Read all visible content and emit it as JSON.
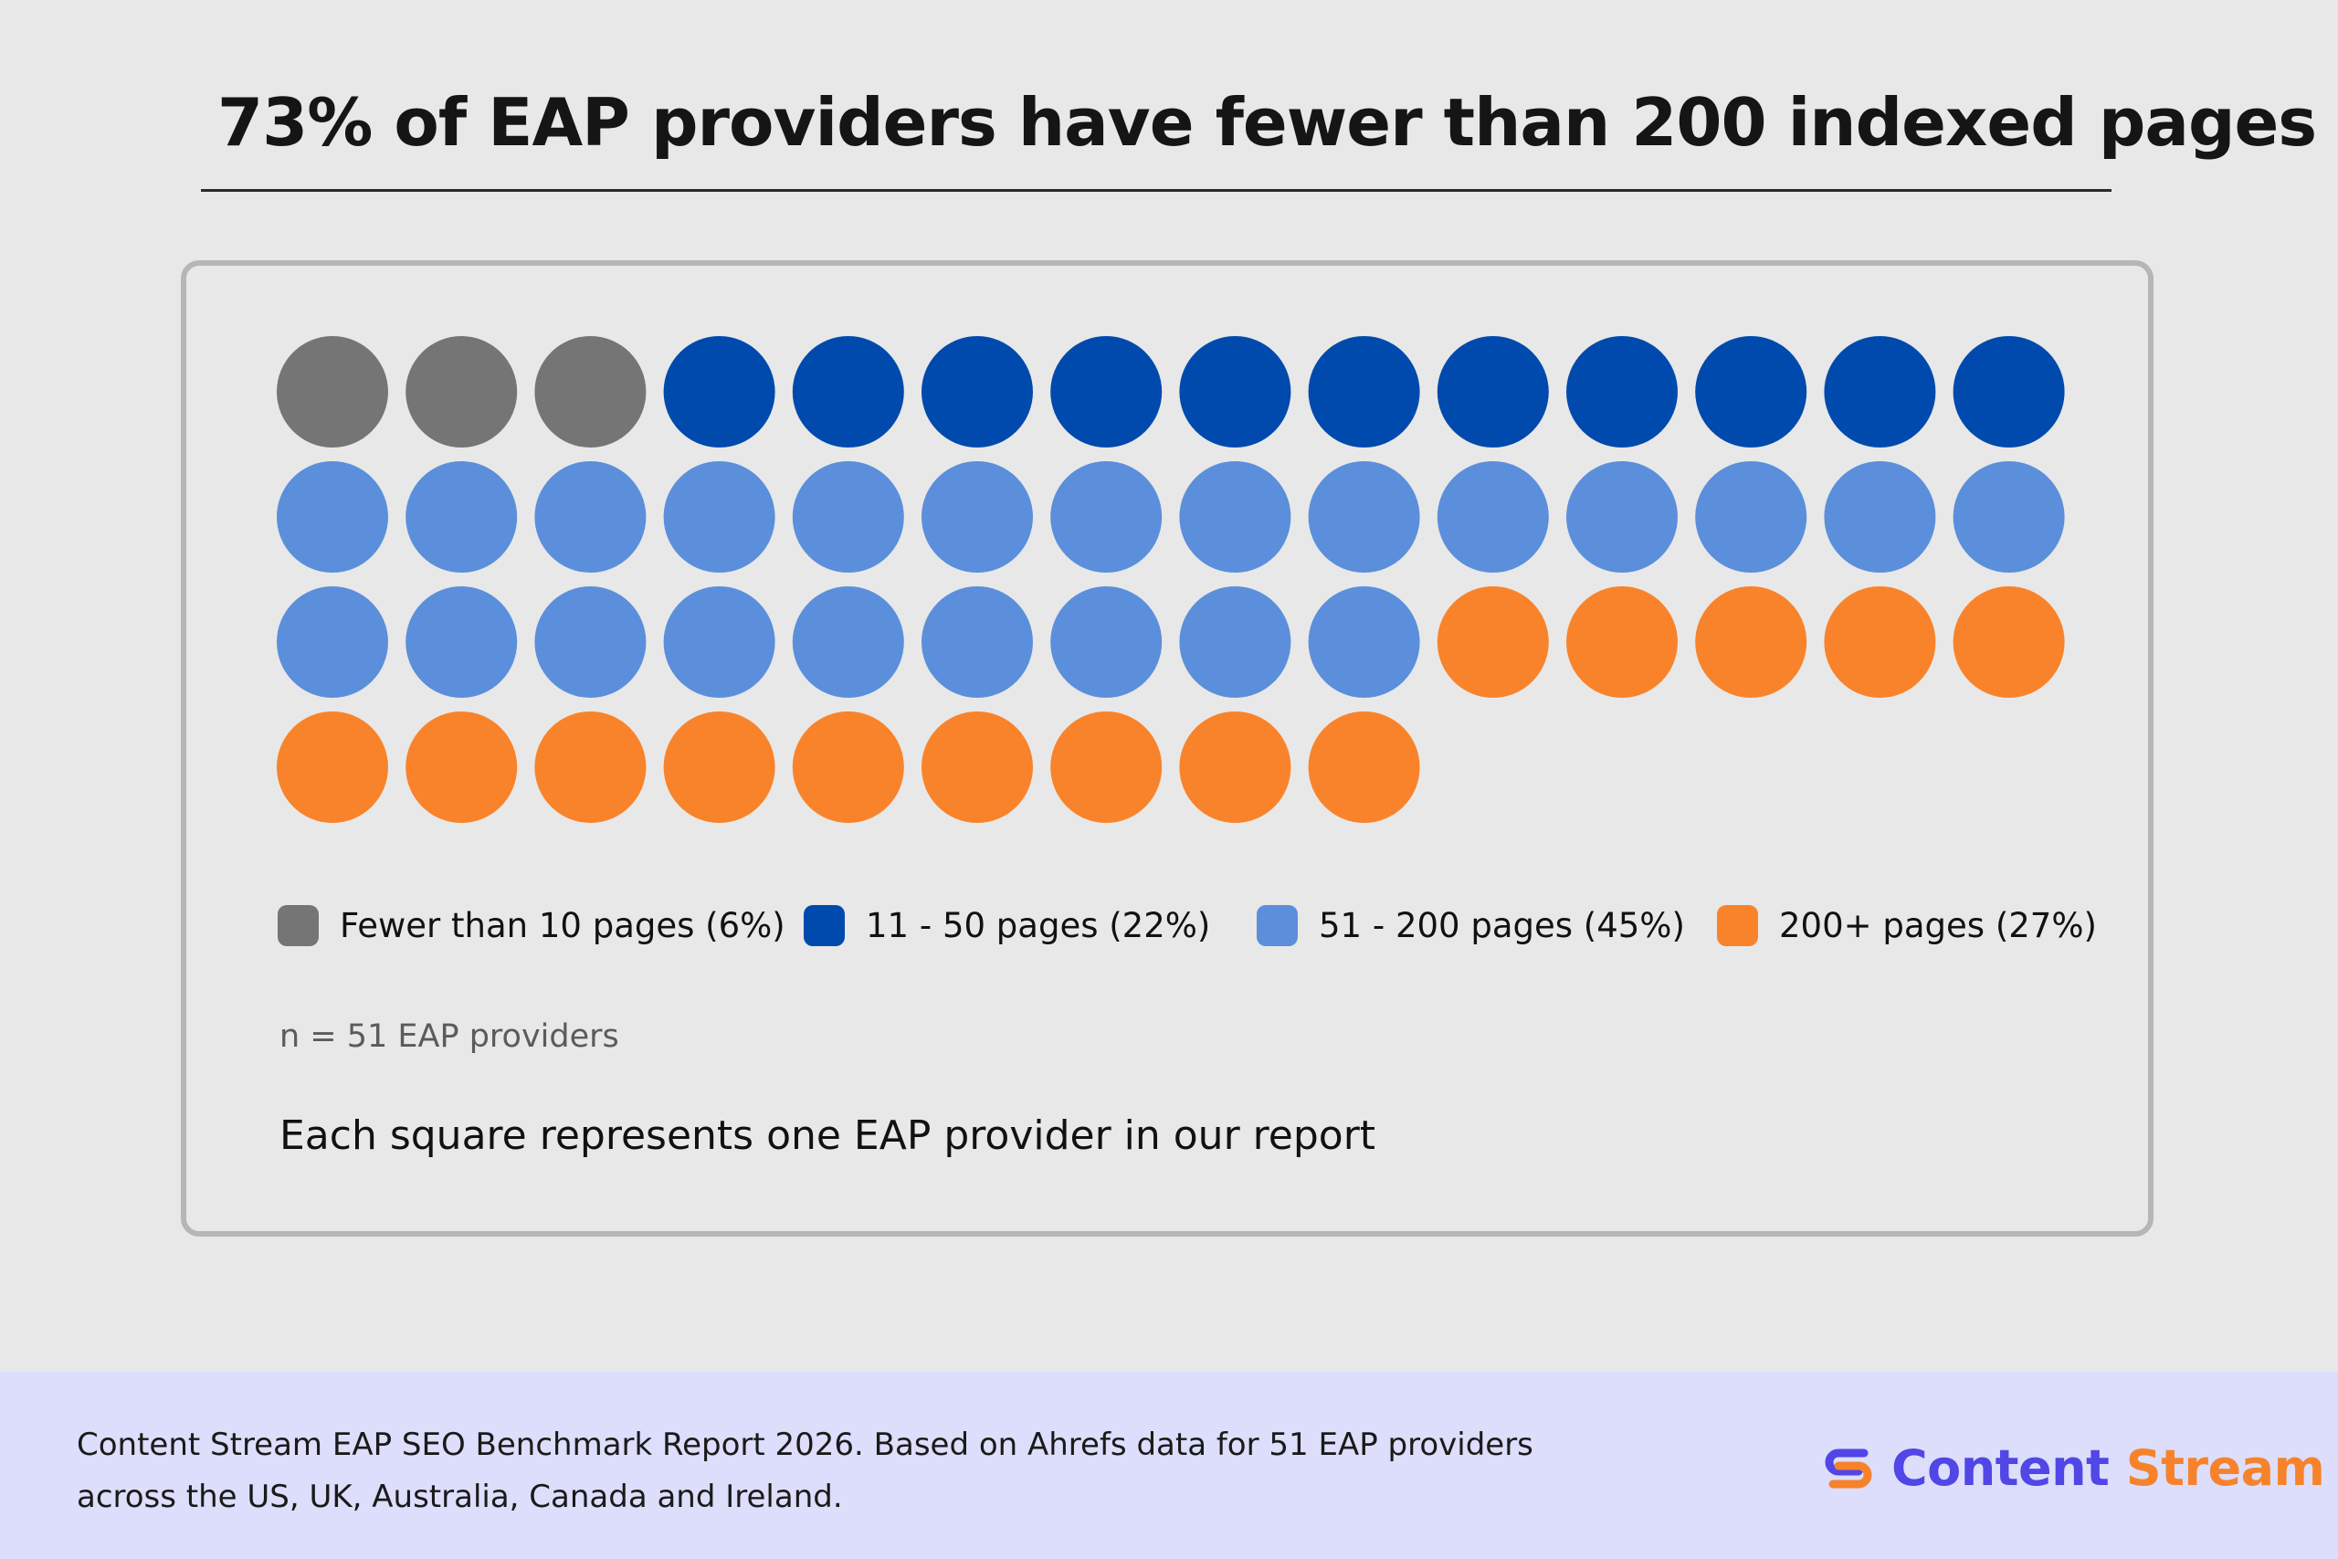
{
  "title": "73% of EAP providers have fewer than 200 indexed pages",
  "chart_data": {
    "type": "waffle",
    "columns": 14,
    "unit": "one EAP provider",
    "total": 51,
    "categories": [
      {
        "label": "Fewer than 10 pages (6%)",
        "count": 3,
        "percent": 6,
        "color": "#757575"
      },
      {
        "label": "11 - 50 pages (22%)",
        "count": 11,
        "percent": 22,
        "color": "#004aad"
      },
      {
        "label": "51 - 200 pages (45%)",
        "count": 23,
        "percent": 45,
        "color": "#5b8fdb"
      },
      {
        "label": "200+ pages (27%)",
        "count": 14,
        "percent": 27,
        "color": "#f9832a"
      }
    ],
    "legend_position": "bottom",
    "notes": {
      "sample": "n = 51 EAP providers",
      "unit": "Each square represents one EAP provider in our report"
    }
  },
  "footer": {
    "source_line1": "Content Stream EAP SEO Benchmark Report 2026. Based on Ahrefs data for 51 EAP providers",
    "source_line2": "across the US, UK, Australia, Canada and Ireland.",
    "brand_word1": "Content",
    "brand_word2": "Stream",
    "logo_icon": "content-stream-logo-icon",
    "brand_colors": {
      "primary": "#5146e6",
      "accent": "#f6832b"
    },
    "background": "#dcdefb"
  }
}
